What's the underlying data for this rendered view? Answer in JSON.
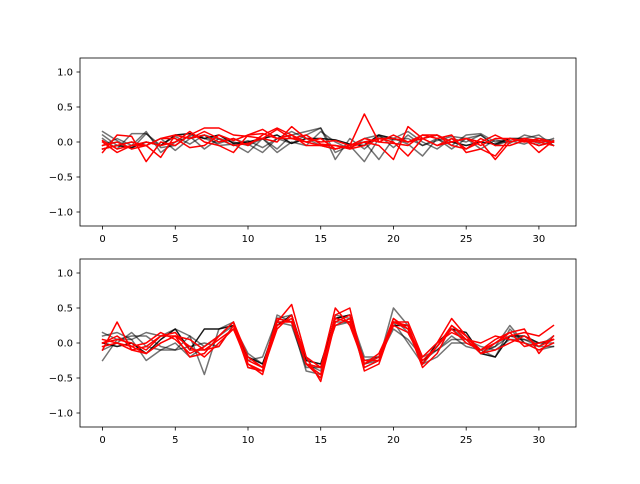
{
  "chart_data": [
    {
      "type": "line",
      "title": "",
      "xlabel": "",
      "ylabel": "",
      "xlim": [
        -1.55,
        32.55
      ],
      "ylim": [
        -1.2,
        1.2
      ],
      "xticks": [
        0,
        5,
        10,
        15,
        20,
        25,
        30
      ],
      "yticks": [
        -1.0,
        -0.5,
        0.0,
        0.5,
        1.0
      ],
      "ytick_labels": [
        "−1.0",
        "−0.5",
        "0.0",
        "0.5",
        "1.0"
      ],
      "grid": false,
      "x": [
        0,
        1,
        2,
        3,
        4,
        5,
        6,
        7,
        8,
        9,
        10,
        11,
        12,
        13,
        14,
        15,
        16,
        17,
        18,
        19,
        20,
        21,
        22,
        23,
        24,
        25,
        26,
        27,
        28,
        29,
        30,
        31
      ],
      "series": [
        {
          "color": "#000000",
          "opacity": 0.55,
          "values": [
            0.15,
            0.02,
            -0.1,
            0.12,
            -0.05,
            0.08,
            -0.03,
            0.1,
            0.04,
            -0.05,
            0.02,
            -0.08,
            0.05,
            -0.02,
            0.1,
            0.2,
            -0.25,
            0.05,
            -0.1,
            0.08,
            0.03,
            0.05,
            -0.05,
            0.02,
            0.08,
            0.05,
            0.1,
            -0.05,
            0.02,
            -0.03,
            0.05,
            0.02
          ]
        },
        {
          "color": "#000000",
          "opacity": 0.55,
          "values": [
            0.05,
            -0.1,
            0.12,
            0.12,
            -0.08,
            -0.05,
            0.1,
            0.05,
            -0.02,
            0.05,
            -0.03,
            -0.15,
            0.05,
            0.15,
            0.05,
            -0.05,
            -0.1,
            -0.05,
            -0.28,
            0.05,
            0.05,
            -0.03,
            -0.2,
            0.05,
            -0.1,
            0.05,
            -0.1,
            0.03,
            -0.02,
            0.1,
            0.05,
            -0.05
          ]
        },
        {
          "color": "#000000",
          "opacity": 0.55,
          "values": [
            -0.05,
            0.05,
            -0.05,
            0.15,
            -0.15,
            0.0,
            0.08,
            -0.1,
            0.05,
            0.0,
            -0.05,
            0.05,
            -0.1,
            0.1,
            0.15,
            0.2,
            -0.15,
            -0.05,
            0.0,
            -0.25,
            0.05,
            0.15,
            0.0,
            -0.1,
            0.05,
            0.0,
            0.1,
            -0.05,
            0.05,
            0.05,
            0.1,
            -0.05
          ]
        },
        {
          "color": "#000000",
          "opacity": 0.55,
          "values": [
            0.1,
            -0.05,
            0.0,
            -0.05,
            0.05,
            -0.12,
            0.05,
            0.1,
            -0.05,
            -0.03,
            -0.15,
            0.05,
            -0.15,
            0.0,
            -0.05,
            0.15,
            0.0,
            -0.1,
            0.05,
            0.1,
            -0.08,
            0.1,
            -0.05,
            0.05,
            -0.05,
            0.1,
            0.12,
            0.0,
            0.05,
            0.05,
            -0.02,
            0.05
          ]
        },
        {
          "color": "#000000",
          "opacity": 0.9,
          "values": [
            -0.1,
            -0.05,
            -0.08,
            0.0,
            -0.05,
            0.1,
            0.12,
            0.05,
            0.1,
            -0.02,
            0.0,
            0.05,
            0.1,
            -0.02,
            0.05,
            0.05,
            0.03,
            -0.03,
            -0.05,
            0.1,
            0.05,
            0.0,
            0.05,
            0.1,
            0.0,
            -0.05,
            0.0,
            -0.03,
            0.05,
            0.02,
            -0.05,
            0.0
          ]
        },
        {
          "color": "#ff0000",
          "opacity": 1,
          "values": [
            -0.15,
            0.1,
            0.08,
            -0.28,
            0.0,
            -0.05,
            0.1,
            0.2,
            0.2,
            0.1,
            0.08,
            0.05,
            0.0,
            0.22,
            0.05,
            0.0,
            0.02,
            -0.05,
            0.4,
            0.0,
            -0.02,
            -0.05,
            0.1,
            0.05,
            0.1,
            -0.15,
            -0.1,
            -0.2,
            0.05,
            0.02,
            -0.05,
            0.0
          ]
        },
        {
          "color": "#ff0000",
          "opacity": 1,
          "values": [
            -0.05,
            0.0,
            -0.1,
            -0.05,
            -0.22,
            0.1,
            0.05,
            0.15,
            0.05,
            -0.05,
            -0.02,
            0.05,
            0.18,
            0.05,
            0.1,
            -0.03,
            -0.05,
            -0.1,
            -0.05,
            0.05,
            0.0,
            -0.2,
            0.05,
            -0.05,
            0.05,
            -0.1,
            0.0,
            -0.25,
            0.0,
            0.05,
            -0.15,
            0.02
          ]
        },
        {
          "color": "#ff0000",
          "opacity": 1,
          "values": [
            0.02,
            -0.1,
            -0.05,
            0.0,
            -0.05,
            0.0,
            0.15,
            0.0,
            -0.05,
            -0.15,
            0.1,
            0.12,
            0.05,
            0.05,
            0.0,
            -0.05,
            -0.1,
            -0.05,
            0.0,
            -0.05,
            -0.25,
            0.22,
            0.05,
            0.1,
            -0.05,
            -0.1,
            0.05,
            -0.05,
            -0.05,
            0.02,
            0.0,
            -0.05
          ]
        },
        {
          "color": "#ff0000",
          "opacity": 1,
          "values": [
            -0.1,
            -0.05,
            0.0,
            -0.05,
            0.05,
            0.05,
            -0.08,
            -0.05,
            0.1,
            0.02,
            0.1,
            0.18,
            0.05,
            0.1,
            -0.05,
            -0.05,
            -0.05,
            -0.08,
            0.0,
            0.05,
            0.05,
            0.0,
            0.1,
            0.1,
            0.0,
            0.05,
            0.0,
            0.1,
            0.0,
            0.05,
            0.02,
            0.0
          ]
        },
        {
          "color": "#ff0000",
          "opacity": 1,
          "values": [
            0.0,
            -0.15,
            -0.05,
            -0.05,
            0.05,
            0.1,
            0.05,
            0.1,
            0.0,
            0.05,
            -0.05,
            0.1,
            0.2,
            0.1,
            0.0,
            0.05,
            -0.1,
            -0.05,
            0.05,
            0.0,
            0.1,
            0.0,
            0.05,
            -0.05,
            0.0,
            0.05,
            -0.05,
            0.05,
            0.05,
            0.0,
            0.05,
            0.0
          ]
        }
      ]
    },
    {
      "type": "line",
      "title": "",
      "xlabel": "",
      "ylabel": "",
      "xlim": [
        -1.55,
        32.55
      ],
      "ylim": [
        -1.2,
        1.2
      ],
      "xticks": [
        0,
        5,
        10,
        15,
        20,
        25,
        30
      ],
      "yticks": [
        -1.0,
        -0.5,
        0.0,
        0.5,
        1.0
      ],
      "ytick_labels": [
        "−1.0",
        "−0.5",
        "0.0",
        "0.5",
        "1.0"
      ],
      "grid": false,
      "x": [
        0,
        1,
        2,
        3,
        4,
        5,
        6,
        7,
        8,
        9,
        10,
        11,
        12,
        13,
        14,
        15,
        16,
        17,
        18,
        19,
        20,
        21,
        22,
        23,
        24,
        25,
        26,
        27,
        28,
        29,
        30,
        31
      ],
      "series": [
        {
          "color": "#000000",
          "opacity": 0.55,
          "values": [
            -0.25,
            0.05,
            0.05,
            -0.25,
            -0.1,
            -0.1,
            0.1,
            -0.45,
            0.2,
            0.3,
            -0.35,
            -0.4,
            0.4,
            0.3,
            -0.4,
            -0.45,
            0.3,
            0.3,
            -0.35,
            -0.25,
            0.5,
            0.25,
            -0.3,
            -0.2,
            0.0,
            0.0,
            -0.1,
            -0.2,
            0.2,
            0.0,
            -0.1,
            -0.05
          ]
        },
        {
          "color": "#000000",
          "opacity": 0.55,
          "values": [
            0.1,
            0.15,
            0.05,
            0.15,
            0.1,
            0.2,
            0.1,
            -0.05,
            0.1,
            0.25,
            -0.2,
            -0.35,
            0.35,
            0.4,
            -0.3,
            -0.35,
            0.35,
            0.4,
            -0.2,
            -0.2,
            0.2,
            0.05,
            -0.2,
            -0.1,
            0.05,
            0.05,
            -0.05,
            -0.1,
            0.05,
            0.05,
            0.0,
            0.0
          ]
        },
        {
          "color": "#000000",
          "opacity": 0.55,
          "values": [
            -0.1,
            0.0,
            0.15,
            -0.05,
            -0.1,
            0.0,
            -0.2,
            -0.05,
            0.1,
            0.3,
            -0.25,
            -0.2,
            0.35,
            0.3,
            -0.3,
            -0.4,
            0.4,
            0.35,
            -0.25,
            -0.2,
            0.3,
            0.0,
            -0.3,
            -0.05,
            0.2,
            0.05,
            -0.15,
            -0.05,
            0.25,
            0.0,
            -0.05,
            0.1
          ]
        },
        {
          "color": "#000000",
          "opacity": 0.55,
          "values": [
            0.15,
            0.05,
            0.1,
            0.1,
            -0.05,
            -0.1,
            -0.05,
            0.0,
            -0.05,
            0.25,
            -0.15,
            -0.3,
            0.3,
            0.25,
            -0.35,
            -0.35,
            0.25,
            0.3,
            -0.3,
            -0.25,
            0.35,
            0.15,
            -0.25,
            -0.1,
            0.1,
            -0.05,
            -0.1,
            -0.05,
            0.1,
            0.05,
            -0.05,
            -0.05
          ]
        },
        {
          "color": "#000000",
          "opacity": 0.9,
          "values": [
            0.0,
            -0.05,
            0.0,
            -0.15,
            0.05,
            0.2,
            -0.1,
            0.2,
            0.2,
            0.25,
            -0.2,
            -0.3,
            0.25,
            0.4,
            -0.25,
            -0.3,
            0.35,
            0.4,
            -0.3,
            -0.2,
            0.25,
            0.25,
            -0.3,
            0.0,
            0.2,
            0.15,
            -0.15,
            -0.2,
            0.1,
            0.1,
            0.0,
            0.05
          ]
        },
        {
          "color": "#ff0000",
          "opacity": 1,
          "values": [
            -0.1,
            0.3,
            -0.1,
            -0.15,
            0.0,
            0.1,
            -0.2,
            -0.15,
            0.1,
            0.3,
            -0.3,
            -0.45,
            0.3,
            0.55,
            -0.2,
            -0.55,
            0.3,
            0.4,
            -0.4,
            -0.3,
            0.3,
            0.3,
            -0.2,
            0.0,
            0.35,
            0.1,
            -0.1,
            0.0,
            0.1,
            0.15,
            0.1,
            0.25
          ]
        },
        {
          "color": "#ff0000",
          "opacity": 1,
          "values": [
            0.05,
            0.0,
            -0.1,
            -0.05,
            0.1,
            0.1,
            -0.05,
            -0.2,
            0.0,
            0.2,
            -0.3,
            -0.4,
            0.25,
            0.35,
            -0.2,
            -0.35,
            0.5,
            0.25,
            -0.3,
            -0.2,
            0.35,
            0.2,
            -0.35,
            -0.15,
            0.25,
            0.1,
            -0.15,
            0.0,
            0.15,
            -0.05,
            0.0,
            0.05
          ]
        },
        {
          "color": "#ff0000",
          "opacity": 1,
          "values": [
            0.0,
            0.05,
            0.0,
            -0.1,
            0.1,
            0.15,
            -0.1,
            -0.1,
            0.05,
            0.2,
            -0.25,
            -0.35,
            0.3,
            0.3,
            -0.3,
            -0.45,
            0.4,
            0.5,
            -0.35,
            -0.25,
            0.3,
            0.2,
            -0.2,
            0.0,
            0.15,
            0.05,
            0.0,
            0.1,
            0.05,
            0.0,
            -0.1,
            0.0
          ]
        },
        {
          "color": "#ff0000",
          "opacity": 1,
          "values": [
            -0.05,
            0.0,
            -0.05,
            -0.15,
            0.0,
            0.1,
            0.05,
            -0.1,
            -0.05,
            0.25,
            -0.35,
            -0.4,
            0.2,
            0.4,
            -0.3,
            -0.5,
            0.35,
            0.3,
            -0.25,
            -0.25,
            0.25,
            0.15,
            -0.25,
            -0.05,
            0.2,
            0.0,
            -0.1,
            0.05,
            0.15,
            0.2,
            -0.15,
            0.1
          ]
        },
        {
          "color": "#ff0000",
          "opacity": 1,
          "values": [
            0.0,
            0.1,
            -0.05,
            0.0,
            0.15,
            0.05,
            -0.15,
            -0.05,
            0.1,
            0.3,
            -0.2,
            -0.35,
            0.35,
            0.3,
            -0.3,
            -0.35,
            0.25,
            0.35,
            -0.3,
            -0.15,
            0.3,
            0.25,
            -0.3,
            -0.05,
            0.25,
            0.05,
            -0.15,
            -0.1,
            0.0,
            0.1,
            -0.05,
            0.05
          ]
        }
      ]
    }
  ]
}
